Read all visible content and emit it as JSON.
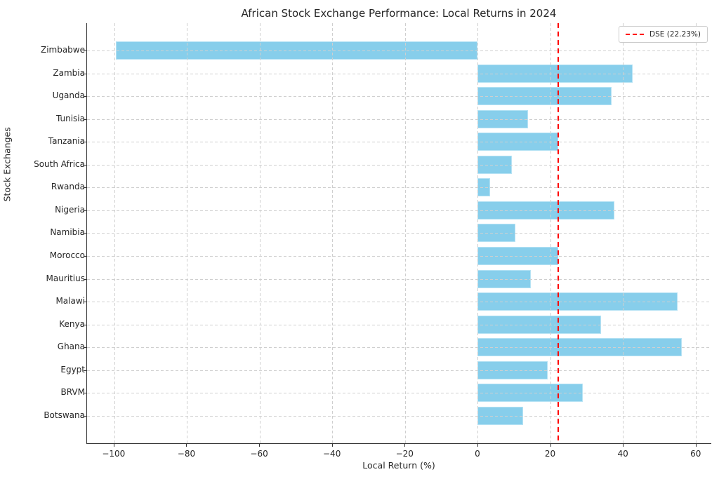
{
  "chart_data": {
    "type": "bar",
    "orientation": "horizontal",
    "title": "African Stock Exchange Performance: Local Returns in 2024",
    "xlabel": "Local Return (%)",
    "ylabel": "Stock Exchanges",
    "categories": [
      "Zimbabwe",
      "Zambia",
      "Uganda",
      "Tunisia",
      "Tanzania",
      "South Africa",
      "Rwanda",
      "Nigeria",
      "Namibia",
      "Morocco",
      "Mauritius",
      "Malawi",
      "Kenya",
      "Ghana",
      "Egypt",
      "BRVM",
      "Botswana"
    ],
    "values": [
      -99.6,
      42.6,
      36.9,
      13.8,
      22.23,
      9.4,
      3.5,
      37.7,
      10.3,
      22.2,
      14.7,
      55.0,
      34.0,
      56.2,
      19.3,
      28.9,
      12.5
    ],
    "xticks": [
      -100,
      -80,
      -60,
      -40,
      -20,
      0,
      20,
      40,
      60
    ],
    "xlim": [
      -107.5,
      64.3
    ],
    "grid": true,
    "grid_style": "dashed",
    "bar_color": "#87CEEB",
    "reference_line": {
      "name": "DSE",
      "value": 22.23,
      "color": "#ff0000",
      "style": "dashed",
      "legend_label": "DSE (22.23%)"
    },
    "legend_position": "upper right"
  }
}
